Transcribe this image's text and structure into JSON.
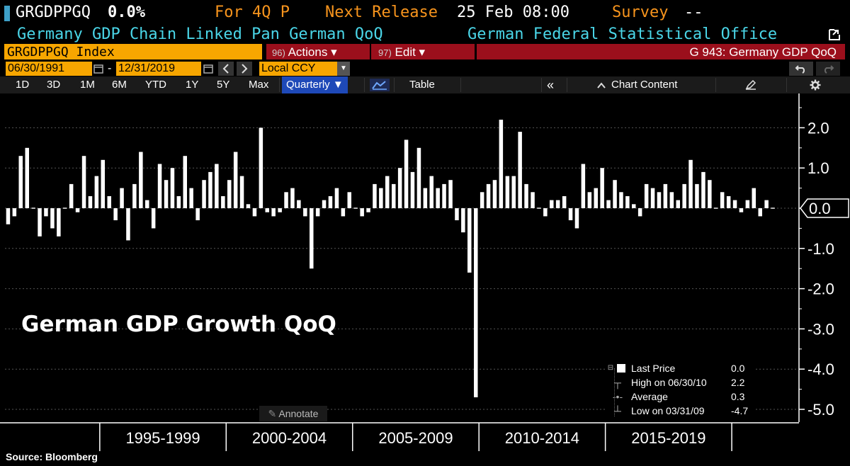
{
  "header": {
    "ticker_label": "GRGDPPGQ",
    "last_value": "0.0%",
    "period_label": "For 4Q P",
    "next_release_label": "Next Release",
    "next_release_value": "25 Feb 08:00",
    "survey_label": "Survey",
    "survey_value": "--",
    "description": "Germany GDP Chain Linked Pan German QoQ",
    "source_org": "German Federal Statistical Office"
  },
  "toolbar": {
    "security": "GRGDPPGQ Index",
    "actions_num": "96)",
    "actions_label": "Actions ▾",
    "edit_num": "97)",
    "edit_label": "Edit ▾",
    "graph_title": "G 943: Germany GDP QoQ",
    "start_date": "06/30/1991",
    "date_sep": "-",
    "end_date": "12/31/2019",
    "currency": "Local CCY"
  },
  "ranges": [
    "1D",
    "3D",
    "1M",
    "6M",
    "YTD",
    "1Y",
    "5Y",
    "Max"
  ],
  "tabs": {
    "frequency": "Quarterly ▼",
    "table": "Table",
    "collapse": "«",
    "chart_content": "Chart Content"
  },
  "annotate_label": "Annotate",
  "overlay_title": "German GDP Growth QoQ",
  "source_note": "Source: Bloomberg",
  "legend": {
    "last_price_label": "Last Price",
    "last_price_value": "0.0",
    "high_label": "High on 06/30/10",
    "high_value": "2.2",
    "average_label": "Average",
    "average_value": "0.3",
    "low_label": "Low on 03/31/09",
    "low_value": "-4.7"
  },
  "colors": {
    "background": "#000000",
    "bars": "#ffffff",
    "orange": "#f7941d",
    "cyan": "#4ad6e8",
    "red_button": "#9b0f1c"
  },
  "chart_data": {
    "type": "bar",
    "title": "German GDP Growth QoQ",
    "frequency": "Quarterly",
    "start": "06/30/1991",
    "end": "12/31/2019",
    "x_tick_labels": [
      "1995-1999",
      "2000-2004",
      "2005-2009",
      "2010-2014",
      "2015-2019"
    ],
    "y_tick_labels": [
      "2.0",
      "1.0",
      "0.0",
      "-1.0",
      "-2.0",
      "-3.0",
      "-4.0",
      "-5.0"
    ],
    "ylim": [
      -5.0,
      2.0
    ],
    "last_value_label": "0.0",
    "values": [
      -0.4,
      -0.2,
      1.3,
      1.5,
      0.0,
      -0.7,
      -0.2,
      -0.5,
      -0.7,
      0.0,
      0.6,
      -0.1,
      1.3,
      0.3,
      0.8,
      1.2,
      0.3,
      -0.3,
      0.5,
      -0.8,
      0.6,
      1.4,
      0.2,
      -0.5,
      1.1,
      0.7,
      1.0,
      0.3,
      1.3,
      0.5,
      -0.3,
      0.7,
      0.9,
      1.1,
      0.3,
      0.7,
      1.4,
      0.8,
      0.1,
      -0.2,
      2.0,
      -0.1,
      -0.2,
      -0.1,
      0.4,
      0.5,
      0.2,
      -0.2,
      -1.5,
      -0.2,
      0.2,
      0.3,
      0.5,
      -0.2,
      0.4,
      0.0,
      -0.2,
      -0.1,
      0.6,
      0.5,
      0.8,
      0.6,
      1.0,
      1.7,
      0.9,
      1.5,
      0.5,
      0.8,
      0.5,
      0.6,
      0.7,
      -0.3,
      -0.6,
      -1.6,
      -4.7,
      0.4,
      0.6,
      0.7,
      2.2,
      0.8,
      0.8,
      1.9,
      0.6,
      0.4,
      0.0,
      -0.2,
      0.2,
      0.2,
      0.3,
      -0.3,
      -0.5,
      1.1,
      0.4,
      0.5,
      1.0,
      0.2,
      0.7,
      0.4,
      0.3,
      0.1,
      -0.2,
      0.6,
      0.5,
      0.4,
      0.6,
      0.4,
      0.2,
      0.6,
      1.2,
      0.6,
      0.9,
      0.7,
      0.0,
      0.4,
      0.3,
      0.2,
      -0.1,
      0.2,
      0.5,
      -0.2,
      0.2,
      0.0
    ]
  }
}
